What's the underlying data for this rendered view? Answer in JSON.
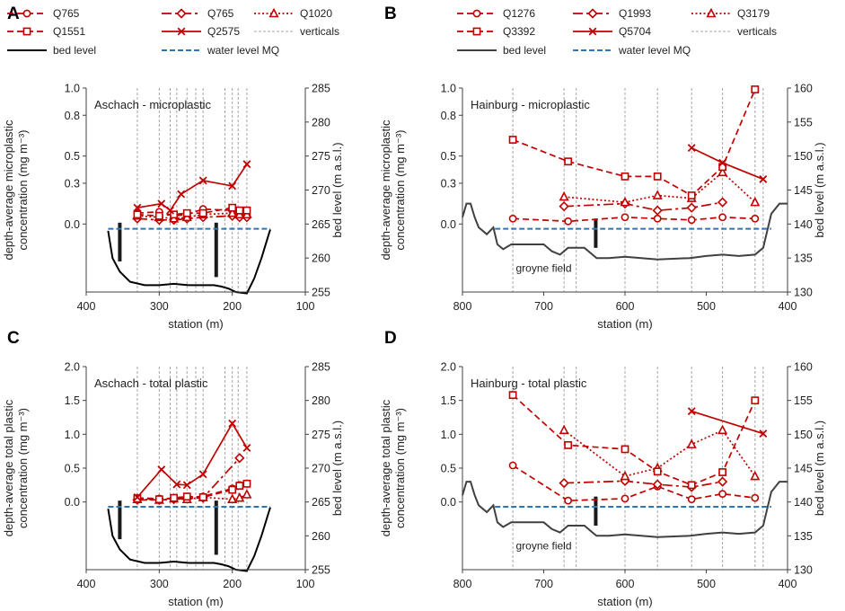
{
  "colors": {
    "series": "#c00000",
    "water": "#2e75b6",
    "bed": "#000000",
    "bed_b": "#404040",
    "verticals": "#a6a6a6"
  },
  "groyne_label": "groyne field",
  "chart_data": [
    {
      "panel": "A",
      "type": "line",
      "title": "Aschach - microplastic",
      "xlabel": "station (m)",
      "ylabel_lines": [
        "depth-average microplastic",
        "concentration (mg m⁻³)"
      ],
      "y2label": "bed level (m a.s.l.)",
      "xlim": [
        400,
        100
      ],
      "xticks": [
        "400",
        "300",
        "200",
        "100"
      ],
      "ylim": [
        -0.5,
        1.0
      ],
      "yticks": [
        "0.0",
        "0.3",
        "0.5",
        "0.8",
        "1.0"
      ],
      "y2lim": [
        255,
        285
      ],
      "y2ticks": [
        "255",
        "260",
        "265",
        "270",
        "275",
        "280",
        "285"
      ],
      "legend": [
        {
          "name": "Q765",
          "marker": "circle",
          "dash": "dash"
        },
        {
          "name": "Q765",
          "marker": "diamond",
          "dash": "longdash"
        },
        {
          "name": "Q1020",
          "marker": "triangle",
          "dash": "dot"
        },
        {
          "name": "Q1551",
          "marker": "square",
          "dash": "dash"
        },
        {
          "name": "Q2575",
          "marker": "x",
          "dash": "solid"
        },
        {
          "name": "verticals",
          "marker": "none",
          "dash": "verticals"
        },
        {
          "name": "bed level",
          "marker": "none",
          "dash": "bed"
        },
        {
          "name": "water level MQ",
          "marker": "none",
          "dash": "water"
        }
      ],
      "series": [
        {
          "name": "Q765",
          "marker": "circle",
          "dash": "dash",
          "x": [
            330,
            300,
            280,
            262,
            240,
            200,
            190,
            180
          ],
          "y": [
            0.08,
            0.09,
            0.06,
            0.07,
            0.11,
            0.1,
            0.08,
            0.06
          ]
        },
        {
          "name": "Q765",
          "marker": "diamond",
          "dash": "longdash",
          "x": [
            330,
            300,
            280,
            262,
            240,
            200,
            190,
            180
          ],
          "y": [
            0.04,
            0.03,
            0.03,
            0.04,
            0.05,
            0.06,
            0.05,
            0.05
          ]
        },
        {
          "name": "Q1020",
          "marker": "triangle",
          "dash": "dot",
          "x": [
            330,
            300,
            280,
            262,
            240,
            200,
            190,
            180
          ],
          "y": [
            0.06,
            0.05,
            0.04,
            0.05,
            0.07,
            0.08,
            0.07,
            0.07
          ]
        },
        {
          "name": "Q1551",
          "marker": "square",
          "dash": "dash",
          "x": [
            330,
            300,
            280,
            262,
            240,
            200,
            190,
            180
          ],
          "y": [
            0.07,
            0.06,
            0.07,
            0.08,
            0.08,
            0.12,
            0.1,
            0.1
          ]
        },
        {
          "name": "Q2575",
          "marker": "x",
          "dash": "solid",
          "x": [
            330,
            297,
            285,
            270,
            240,
            200,
            180
          ],
          "y": [
            0.12,
            0.15,
            0.1,
            0.22,
            0.32,
            0.28,
            0.44
          ]
        }
      ],
      "verticals": [
        330,
        300,
        285,
        276,
        262,
        250,
        240,
        210,
        200,
        192,
        180
      ],
      "water_level": {
        "x": [
          370,
          148
        ],
        "value": 264.3
      },
      "bed": {
        "x": [
          370,
          364,
          354,
          340,
          320,
          300,
          280,
          260,
          240,
          225,
          215,
          205,
          195,
          180,
          170,
          160,
          150,
          148
        ],
        "y": [
          264,
          260,
          258,
          256.5,
          256,
          256,
          256.2,
          256,
          256,
          256,
          255.8,
          255.5,
          255,
          254.8,
          257,
          260,
          263.5,
          264.2
        ]
      },
      "groynes": [
        {
          "x": 354,
          "top": 265.2,
          "bottom": 259.5
        },
        {
          "x": 222,
          "top": 265.2,
          "bottom": 257.2
        }
      ],
      "show_groyne_label": false
    },
    {
      "panel": "B",
      "type": "line",
      "title": "Hainburg - microplastic",
      "xlabel": "station (m)",
      "ylabel_lines": [
        "depth-average microplastic",
        "concentration (mg m⁻³)"
      ],
      "y2label": "bed level (m a.s.l.)",
      "xlim": [
        800,
        400
      ],
      "xticks": [
        "800",
        "700",
        "600",
        "500",
        "400"
      ],
      "ylim": [
        -0.5,
        1.0
      ],
      "yticks": [
        "0.0",
        "0.3",
        "0.5",
        "0.8",
        "1.0"
      ],
      "y2lim": [
        130,
        160
      ],
      "y2ticks": [
        "130",
        "135",
        "140",
        "145",
        "150",
        "155",
        "160"
      ],
      "legend": [
        {
          "name": "Q1276",
          "marker": "circle",
          "dash": "dash"
        },
        {
          "name": "Q1993",
          "marker": "diamond",
          "dash": "longdash"
        },
        {
          "name": "Q3179",
          "marker": "triangle",
          "dash": "dot"
        },
        {
          "name": "Q3392",
          "marker": "square",
          "dash": "dash"
        },
        {
          "name": "Q5704",
          "marker": "x",
          "dash": "solid"
        },
        {
          "name": "verticals",
          "marker": "none",
          "dash": "verticals"
        },
        {
          "name": "bed level",
          "marker": "none",
          "dash": "bed"
        },
        {
          "name": "water level MQ",
          "marker": "none",
          "dash": "water"
        }
      ],
      "series": [
        {
          "name": "Q1276",
          "marker": "circle",
          "dash": "dash",
          "x": [
            738,
            670,
            600,
            560,
            518,
            480,
            440
          ],
          "y": [
            0.04,
            0.02,
            0.05,
            0.04,
            0.03,
            0.05,
            0.04
          ]
        },
        {
          "name": "Q1993",
          "marker": "diamond",
          "dash": "longdash",
          "x": [
            675,
            600,
            560,
            518,
            480
          ],
          "y": [
            0.13,
            0.15,
            0.1,
            0.12,
            0.16
          ]
        },
        {
          "name": "Q3179",
          "marker": "triangle",
          "dash": "dot",
          "x": [
            675,
            600,
            560,
            518,
            480,
            440
          ],
          "y": [
            0.2,
            0.16,
            0.21,
            0.19,
            0.38,
            0.16
          ]
        },
        {
          "name": "Q3392",
          "marker": "square",
          "dash": "dash",
          "x": [
            738,
            670,
            600,
            560,
            518,
            480,
            440
          ],
          "y": [
            0.62,
            0.46,
            0.35,
            0.35,
            0.21,
            0.42,
            0.99
          ]
        },
        {
          "name": "Q5704",
          "marker": "x",
          "dash": "solid",
          "x": [
            518,
            480,
            430
          ],
          "y": [
            0.56,
            0.45,
            0.33
          ]
        }
      ],
      "verticals": [
        738,
        675,
        660,
        600,
        560,
        518,
        480,
        440,
        430
      ],
      "water_level": {
        "x": [
          760,
          420
        ],
        "value": 139.3
      },
      "bed": {
        "x": [
          800,
          795,
          790,
          785,
          780,
          770,
          762,
          757,
          750,
          740,
          720,
          700,
          690,
          680,
          670,
          650,
          640,
          635,
          620,
          600,
          560,
          520,
          500,
          480,
          460,
          440,
          430,
          425,
          420,
          410,
          400
        ],
        "y": [
          141,
          143,
          143,
          141,
          139.5,
          138.5,
          139.5,
          137,
          136.3,
          137,
          137,
          137,
          136,
          135.5,
          136.5,
          136.5,
          135.5,
          135,
          135,
          135.2,
          134.8,
          135,
          135.3,
          135.5,
          135.3,
          135.5,
          136.5,
          139,
          141.5,
          143,
          143
        ]
      },
      "groynes": [
        {
          "x": 636,
          "top": 140.8,
          "bottom": 136.5
        }
      ],
      "show_groyne_label": true
    },
    {
      "panel": "C",
      "type": "line",
      "title": "Aschach - total plastic",
      "xlabel": "station (m)",
      "ylabel_lines": [
        "depth-average total plastic",
        "concentration (mg m⁻³)"
      ],
      "y2label": "bed level (m a.s.l.)",
      "xlim": [
        400,
        100
      ],
      "xticks": [
        "400",
        "300",
        "200",
        "100"
      ],
      "ylim": [
        -1.0,
        2.0
      ],
      "yticks": [
        "0.0",
        "0.5",
        "1.0",
        "1.5",
        "2.0"
      ],
      "y2lim": [
        255,
        285
      ],
      "y2ticks": [
        "255",
        "260",
        "265",
        "270",
        "275",
        "280",
        "285"
      ],
      "legend": [],
      "series": [
        {
          "name": "Q765",
          "marker": "circle",
          "dash": "dash",
          "x": [
            330,
            300,
            280,
            262,
            240,
            200,
            190,
            180
          ],
          "y": [
            0.06,
            0.05,
            0.05,
            0.07,
            0.08,
            0.2,
            0.25,
            0.27
          ]
        },
        {
          "name": "Q765",
          "marker": "diamond",
          "dash": "longdash",
          "x": [
            330,
            300,
            280,
            262,
            240,
            190
          ],
          "y": [
            0.03,
            0.03,
            0.04,
            0.05,
            0.06,
            0.65
          ]
        },
        {
          "name": "Q1020",
          "marker": "triangle",
          "dash": "dot",
          "x": [
            330,
            300,
            280,
            262,
            240,
            200,
            190,
            180
          ],
          "y": [
            0.04,
            0.03,
            0.05,
            0.04,
            0.07,
            0.04,
            0.06,
            0.11
          ]
        },
        {
          "name": "Q1551",
          "marker": "square",
          "dash": "dash",
          "x": [
            330,
            300,
            280,
            262,
            240,
            200,
            190,
            180
          ],
          "y": [
            0.05,
            0.04,
            0.06,
            0.08,
            0.07,
            0.18,
            0.24,
            0.27
          ]
        },
        {
          "name": "Q2575",
          "marker": "x",
          "dash": "solid",
          "x": [
            330,
            297,
            276,
            262,
            240,
            200,
            180
          ],
          "y": [
            0.07,
            0.48,
            0.26,
            0.25,
            0.41,
            1.16,
            0.8
          ]
        }
      ],
      "verticals": [
        330,
        300,
        285,
        276,
        262,
        250,
        240,
        210,
        200,
        192,
        180
      ],
      "water_level": {
        "x": [
          370,
          148
        ],
        "value": 264.3
      },
      "bed": {
        "x": [
          370,
          364,
          354,
          340,
          320,
          300,
          280,
          260,
          240,
          225,
          215,
          205,
          195,
          180,
          170,
          160,
          150,
          148
        ],
        "y": [
          264,
          260,
          258,
          256.5,
          256,
          256,
          256.2,
          256,
          256,
          256,
          255.8,
          255.5,
          255,
          254.8,
          257,
          260,
          263.5,
          264.2
        ]
      },
      "groynes": [
        {
          "x": 354,
          "top": 265.2,
          "bottom": 259.5
        },
        {
          "x": 222,
          "top": 265.2,
          "bottom": 257.2
        }
      ],
      "show_groyne_label": false
    },
    {
      "panel": "D",
      "type": "line",
      "title": "Hainburg - total plastic",
      "xlabel": "station (m)",
      "ylabel_lines": [
        "depth-average total plastic",
        "concentration (mg m⁻³)"
      ],
      "y2label": "bed level (m a.s.l.)",
      "xlim": [
        800,
        400
      ],
      "xticks": [
        "800",
        "700",
        "600",
        "500",
        "400"
      ],
      "ylim": [
        -1.0,
        2.0
      ],
      "yticks": [
        "0.0",
        "0.5",
        "1.0",
        "1.5",
        "2.0"
      ],
      "y2lim": [
        130,
        160
      ],
      "y2ticks": [
        "130",
        "135",
        "140",
        "145",
        "150",
        "155",
        "160"
      ],
      "legend": [],
      "series": [
        {
          "name": "Q1276",
          "marker": "circle",
          "dash": "dash",
          "x": [
            738,
            670,
            600,
            560,
            518,
            480,
            440
          ],
          "y": [
            0.54,
            0.02,
            0.05,
            0.23,
            0.04,
            0.12,
            0.06
          ]
        },
        {
          "name": "Q1993",
          "marker": "diamond",
          "dash": "longdash",
          "x": [
            675,
            600,
            560,
            518,
            480
          ],
          "y": [
            0.28,
            0.31,
            0.26,
            0.22,
            0.3
          ]
        },
        {
          "name": "Q3179",
          "marker": "triangle",
          "dash": "dot",
          "x": [
            675,
            600,
            560,
            518,
            480,
            440
          ],
          "y": [
            1.06,
            0.38,
            0.5,
            0.85,
            1.06,
            0.38
          ]
        },
        {
          "name": "Q3392",
          "marker": "square",
          "dash": "dash",
          "x": [
            738,
            670,
            600,
            560,
            518,
            480,
            440
          ],
          "y": [
            1.58,
            0.84,
            0.78,
            0.45,
            0.25,
            0.44,
            1.5
          ]
        },
        {
          "name": "Q5704",
          "marker": "x",
          "dash": "solid",
          "x": [
            518,
            430
          ],
          "y": [
            1.34,
            1.01
          ]
        }
      ],
      "verticals": [
        738,
        675,
        660,
        600,
        560,
        518,
        480,
        440,
        430
      ],
      "water_level": {
        "x": [
          760,
          420
        ],
        "value": 139.3
      },
      "bed": {
        "x": [
          800,
          795,
          790,
          785,
          780,
          770,
          762,
          757,
          750,
          740,
          720,
          700,
          690,
          680,
          670,
          650,
          640,
          635,
          620,
          600,
          560,
          520,
          500,
          480,
          460,
          440,
          430,
          425,
          420,
          410,
          400
        ],
        "y": [
          141,
          143,
          143,
          141,
          139.5,
          138.5,
          139.5,
          137,
          136.3,
          137,
          137,
          137,
          136,
          135.5,
          136.5,
          136.5,
          135.5,
          135,
          135,
          135.2,
          134.8,
          135,
          135.3,
          135.5,
          135.3,
          135.5,
          136.5,
          139,
          141.5,
          143,
          143
        ]
      },
      "groynes": [
        {
          "x": 636,
          "top": 140.8,
          "bottom": 136.5
        }
      ],
      "show_groyne_label": true
    }
  ]
}
